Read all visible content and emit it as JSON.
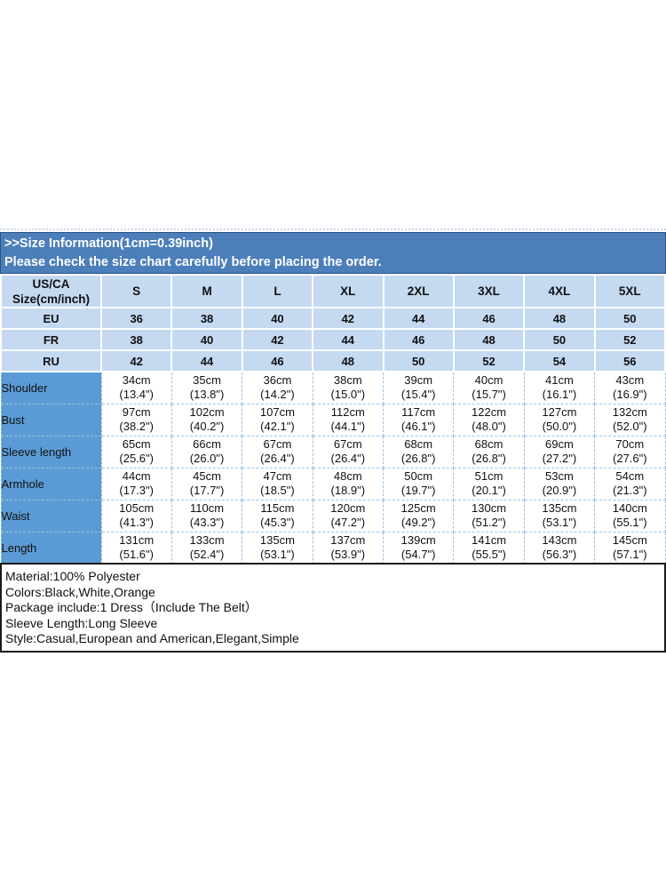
{
  "banner": {
    "title": ">>Size Information(1cm=0.39inch)",
    "subtitle": "Please check the size chart carefully before placing the order."
  },
  "size_chart": {
    "corner": {
      "line1": "US/CA",
      "line2": "Size(cm/inch)"
    },
    "size_columns": [
      "S",
      "M",
      "L",
      "XL",
      "2XL",
      "3XL",
      "4XL",
      "5XL"
    ],
    "region_rows": [
      {
        "label": "EU",
        "values": [
          "36",
          "38",
          "40",
          "42",
          "44",
          "46",
          "48",
          "50"
        ]
      },
      {
        "label": "FR",
        "values": [
          "38",
          "40",
          "42",
          "44",
          "46",
          "48",
          "50",
          "52"
        ]
      },
      {
        "label": "RU",
        "values": [
          "42",
          "44",
          "46",
          "48",
          "50",
          "52",
          "54",
          "56"
        ]
      }
    ],
    "measurement_rows": [
      {
        "label": "Shoulder",
        "values": [
          {
            "cm": "34cm",
            "inch": "(13.4\")"
          },
          {
            "cm": "35cm",
            "inch": "(13.8\")"
          },
          {
            "cm": "36cm",
            "inch": "(14.2\")"
          },
          {
            "cm": "38cm",
            "inch": "(15.0\")"
          },
          {
            "cm": "39cm",
            "inch": "(15.4\")"
          },
          {
            "cm": "40cm",
            "inch": "(15.7\")"
          },
          {
            "cm": "41cm",
            "inch": "(16.1\")"
          },
          {
            "cm": "43cm",
            "inch": "(16.9\")"
          }
        ]
      },
      {
        "label": "Bust",
        "values": [
          {
            "cm": "97cm",
            "inch": "(38.2\")"
          },
          {
            "cm": "102cm",
            "inch": "(40.2\")"
          },
          {
            "cm": "107cm",
            "inch": "(42.1\")"
          },
          {
            "cm": "112cm",
            "inch": "(44.1\")"
          },
          {
            "cm": "117cm",
            "inch": "(46.1\")"
          },
          {
            "cm": "122cm",
            "inch": "(48.0\")"
          },
          {
            "cm": "127cm",
            "inch": "(50.0\")"
          },
          {
            "cm": "132cm",
            "inch": "(52.0\")"
          }
        ]
      },
      {
        "label": "Sleeve length",
        "values": [
          {
            "cm": "65cm",
            "inch": "(25.6\")"
          },
          {
            "cm": "66cm",
            "inch": "(26.0\")"
          },
          {
            "cm": "67cm",
            "inch": "(26.4\")"
          },
          {
            "cm": "67cm",
            "inch": "(26.4\")"
          },
          {
            "cm": "68cm",
            "inch": "(26.8\")"
          },
          {
            "cm": "68cm",
            "inch": "(26.8\")"
          },
          {
            "cm": "69cm",
            "inch": "(27.2\")"
          },
          {
            "cm": "70cm",
            "inch": "(27.6\")"
          }
        ]
      },
      {
        "label": "Armhole",
        "values": [
          {
            "cm": "44cm",
            "inch": "(17.3\")"
          },
          {
            "cm": "45cm",
            "inch": "(17.7\")"
          },
          {
            "cm": "47cm",
            "inch": "(18.5\")"
          },
          {
            "cm": "48cm",
            "inch": "(18.9\")"
          },
          {
            "cm": "50cm",
            "inch": "(19.7\")"
          },
          {
            "cm": "51cm",
            "inch": "(20.1\")"
          },
          {
            "cm": "53cm",
            "inch": "(20.9\")"
          },
          {
            "cm": "54cm",
            "inch": "(21.3\")"
          }
        ]
      },
      {
        "label": "Waist",
        "values": [
          {
            "cm": "105cm",
            "inch": "(41.3\")"
          },
          {
            "cm": "110cm",
            "inch": "(43.3\")"
          },
          {
            "cm": "115cm",
            "inch": "(45.3\")"
          },
          {
            "cm": "120cm",
            "inch": "(47.2\")"
          },
          {
            "cm": "125cm",
            "inch": "(49.2\")"
          },
          {
            "cm": "130cm",
            "inch": "(51.2\")"
          },
          {
            "cm": "135cm",
            "inch": "(53.1\")"
          },
          {
            "cm": "140cm",
            "inch": "(55.1\")"
          }
        ]
      },
      {
        "label": "Length",
        "values": [
          {
            "cm": "131cm",
            "inch": "(51.6\")"
          },
          {
            "cm": "133cm",
            "inch": "(52.4\")"
          },
          {
            "cm": "135cm",
            "inch": "(53.1\")"
          },
          {
            "cm": "137cm",
            "inch": "(53.9\")"
          },
          {
            "cm": "139cm",
            "inch": "(54.7\")"
          },
          {
            "cm": "141cm",
            "inch": "(55.5\")"
          },
          {
            "cm": "143cm",
            "inch": "(56.3\")"
          },
          {
            "cm": "145cm",
            "inch": "(57.1\")"
          }
        ]
      }
    ]
  },
  "product_details": {
    "lines": [
      "Material:100% Polyester",
      "Colors:Black,White,Orange",
      "Package include:1 Dress（Include The Belt）",
      "Sleeve Length:Long Sleeve",
      "Style:Casual,European and American,Elegant,Simple"
    ]
  },
  "colors": {
    "banner_bg": "#4c7fba",
    "banner_border": "#2a5386",
    "banner_text": "#ffffff",
    "header_cell_bg": "#c5d9f1",
    "label_cell_bg": "#5b9bd5",
    "data_border": "#9cc2e5",
    "table_text": "#111111",
    "details_border": "#1a1a1a"
  }
}
